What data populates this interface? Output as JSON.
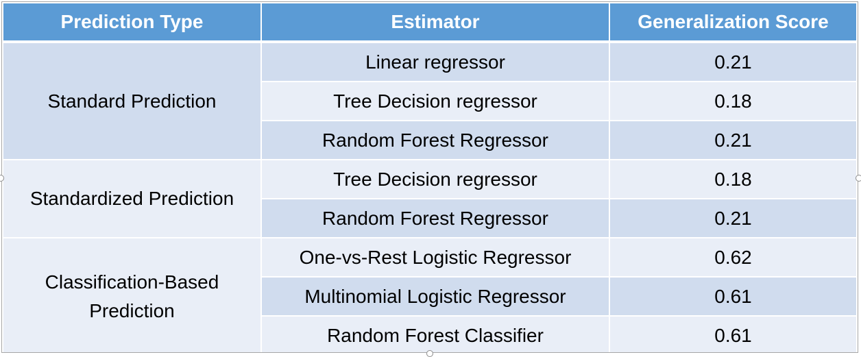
{
  "table": {
    "headers": {
      "prediction_type": "Prediction Type",
      "estimator": "Estimator",
      "score": "Generalization Score"
    },
    "groups": [
      {
        "name": "Standard Prediction",
        "rows": [
          {
            "estimator": "Linear regressor",
            "score": "0.21"
          },
          {
            "estimator": "Tree Decision regressor",
            "score": "0.18"
          },
          {
            "estimator": "Random Forest Regressor",
            "score": "0.21"
          }
        ]
      },
      {
        "name": "Standardized Prediction",
        "rows": [
          {
            "estimator": "Tree Decision regressor",
            "score": "0.18"
          },
          {
            "estimator": "Random Forest Regressor",
            "score": "0.21"
          }
        ]
      },
      {
        "name_line1": "Classification-Based",
        "name_line2": "Prediction",
        "rows": [
          {
            "estimator": "One-vs-Rest Logistic Regressor",
            "score": "0.62"
          },
          {
            "estimator": "Multinomial Logistic Regressor",
            "score": "0.61"
          },
          {
            "estimator": "Random Forest Classifier",
            "score": "0.61"
          }
        ]
      }
    ]
  },
  "colors": {
    "header_bg": "#5b9bd5",
    "band_dark": "#d0dcee",
    "band_light": "#e9eef7"
  }
}
